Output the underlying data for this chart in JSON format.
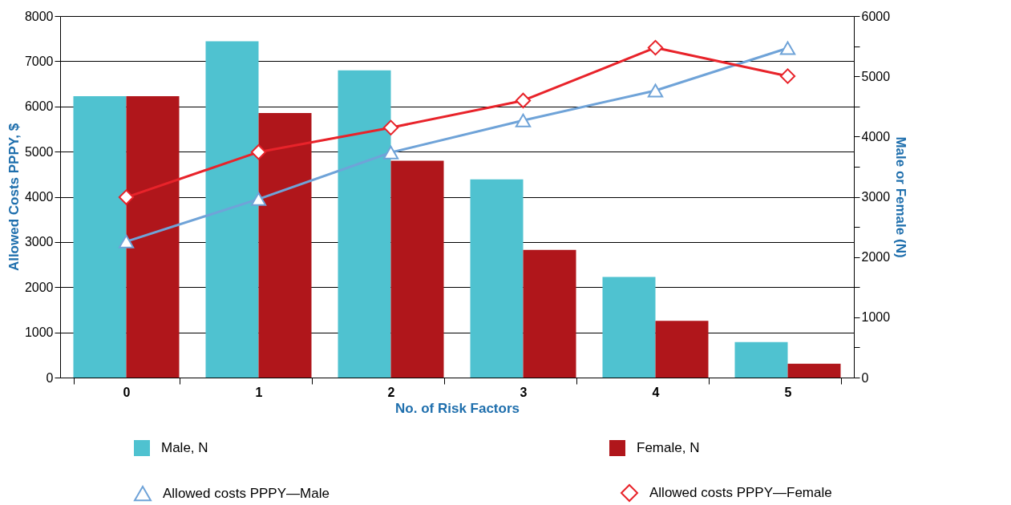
{
  "chart_data": {
    "type": "bar",
    "xlabel": "No. of Risk Factors",
    "ylabel": "Allowed Costs PPPY, $",
    "y2label": "Male or Female (N)",
    "categories": [
      "0",
      "1",
      "2",
      "3",
      "4",
      "5"
    ],
    "series": [
      {
        "name": "Male, N",
        "axis": "y2",
        "color": "#4fc2d0",
        "values": [
          4670,
          5580,
          5100,
          3290,
          1670,
          590
        ]
      },
      {
        "name": "Female, N",
        "axis": "y2",
        "color": "#b0161b",
        "values": [
          4670,
          4390,
          3600,
          2120,
          940,
          230
        ]
      },
      {
        "name": "Allowed costs PPPY—Male",
        "type": "line",
        "marker": "triangle",
        "color": "#6fa3d8",
        "values": [
          3010,
          3950,
          4980,
          5690,
          6350,
          7290
        ]
      },
      {
        "name": "Allowed costs PPPY—Female",
        "type": "line",
        "marker": "diamond",
        "color": "#e8232a",
        "values": [
          3990,
          4990,
          5530,
          6130,
          7300,
          6670
        ]
      }
    ],
    "ylim": [
      0,
      8000
    ],
    "yticks": [
      0,
      1000,
      2000,
      3000,
      4000,
      5000,
      6000,
      7000,
      8000
    ],
    "y2lim": [
      0,
      6000
    ],
    "y2ticks": [
      0,
      {
        "value": 500,
        "label": null
      },
      1000,
      {
        "value": 1500,
        "label": null
      },
      2000,
      {
        "value": 2500,
        "label": null
      },
      3000,
      {
        "value": 3500,
        "label": null
      },
      4000,
      {
        "value": 4500,
        "label": null
      },
      5000,
      {
        "value": 5500,
        "label": null
      },
      6000
    ],
    "grid": "y",
    "legend": "bottom"
  }
}
